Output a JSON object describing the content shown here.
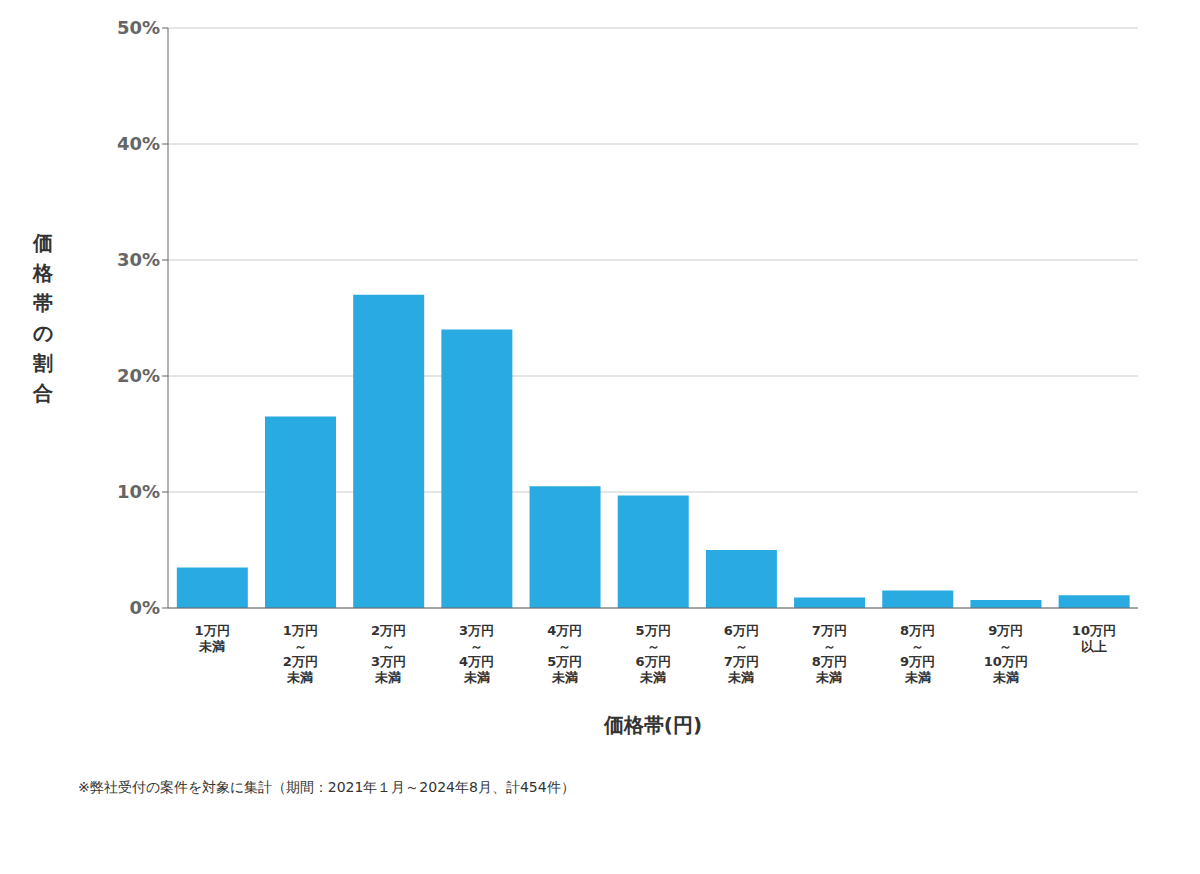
{
  "chart_data": {
    "type": "bar",
    "x_label": "価格帯(円)",
    "y_label": "価格帯の割合",
    "footnote": "※弊社受付の案件を対象に集計（期間：2021年１月～2024年8月、計454件）",
    "categories": [
      "1万円\n未満",
      "1万円\n～\n2万円\n未満",
      "2万円\n～\n3万円\n未満",
      "3万円\n～\n4万円\n未満",
      "4万円\n～\n5万円\n未満",
      "5万円\n～\n6万円\n未満",
      "6万円\n～\n7万円\n未満",
      "7万円\n～\n8万円\n未満",
      "8万円\n～\n9万円\n未満",
      "9万円\n～\n10万円\n未満",
      "10万円\n以上"
    ],
    "values": [
      3.5,
      16.5,
      27.0,
      24.0,
      10.5,
      9.7,
      5.0,
      0.9,
      1.5,
      0.7,
      1.1
    ],
    "color": "#29ABE2",
    "ylim": [
      0,
      50
    ],
    "yticks": [
      {
        "value": 0,
        "label": "0%"
      },
      {
        "value": 10,
        "label": "10%"
      },
      {
        "value": 20,
        "label": "20%"
      },
      {
        "value": 30,
        "label": "30%"
      },
      {
        "value": 40,
        "label": "40%"
      },
      {
        "value": 50,
        "label": "50%"
      }
    ],
    "grid": true
  }
}
